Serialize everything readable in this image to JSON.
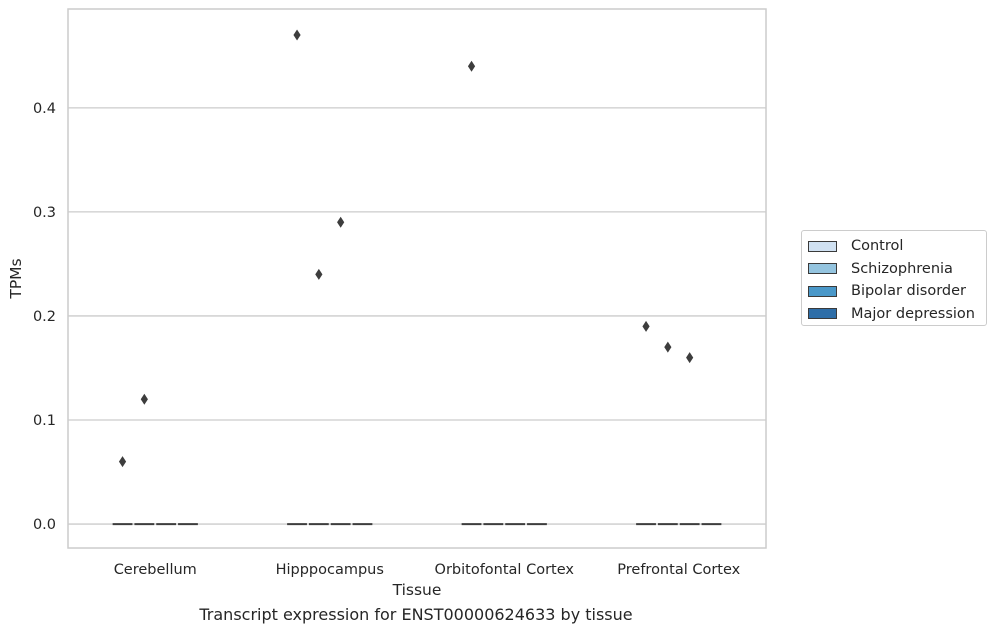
{
  "chart_data": {
    "type": "box",
    "xlabel": "Tissue",
    "ylabel": "TPMs",
    "caption": "Transcript expression for ENST00000624633 by tissue",
    "categories": [
      "Cerebellum",
      "Hipppocampus",
      "Orbitofontal Cortex",
      "Prefrontal Cortex"
    ],
    "ylim": [
      -0.023,
      0.495
    ],
    "yticks": [
      0.0,
      0.1,
      0.2,
      0.3,
      0.4
    ],
    "ytick_labels": [
      "0.0",
      "0.1",
      "0.2",
      "0.3",
      "0.4"
    ],
    "grid": "horizontal",
    "legend_position": "right",
    "series": [
      {
        "name": "Control",
        "color": "#d0e1f2",
        "median": [
          0,
          0,
          0,
          0
        ],
        "outliers": [
          [
            0.06
          ],
          [
            0.47
          ],
          [
            0.44
          ],
          [
            0.19
          ]
        ]
      },
      {
        "name": "Schizophrenia",
        "color": "#94c4df",
        "median": [
          0,
          0,
          0,
          0
        ],
        "outliers": [
          [
            0.12
          ],
          [
            0.24
          ],
          [],
          [
            0.17
          ]
        ]
      },
      {
        "name": "Bipolar disorder",
        "color": "#4a98c9",
        "median": [
          0,
          0,
          0,
          0
        ],
        "outliers": [
          [],
          [
            0.29
          ],
          [],
          [
            0.16
          ]
        ]
      },
      {
        "name": "Major depression",
        "color": "#2e6ea8",
        "median": [
          0,
          0,
          0,
          0
        ],
        "outliers": [
          [],
          [],
          [],
          []
        ]
      }
    ]
  }
}
